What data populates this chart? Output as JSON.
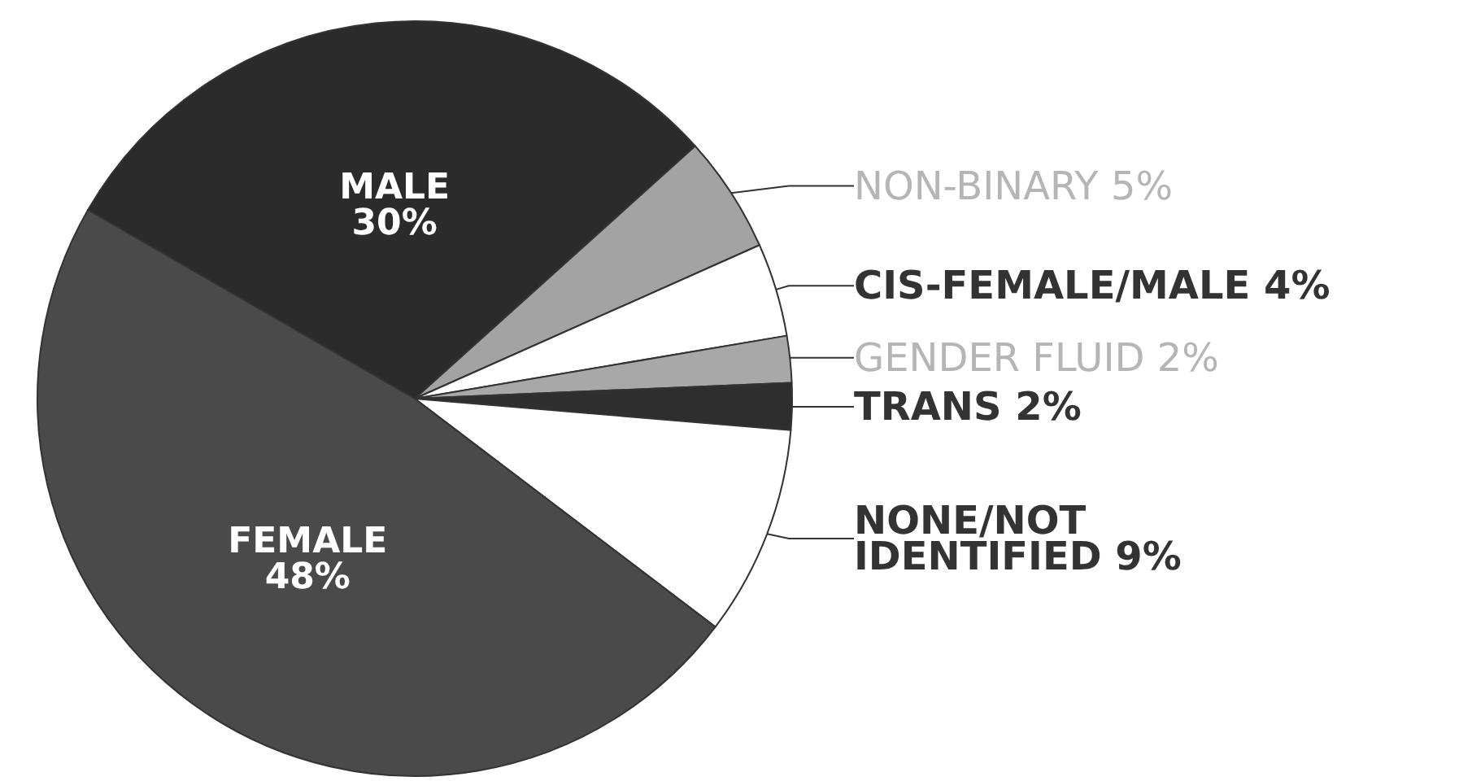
{
  "chart_data": {
    "type": "pie",
    "categories": [
      "MALE",
      "NON-BINARY",
      "CIS-FEMALE/MALE",
      "GENDER FLUID",
      "TRANS",
      "NONE/NOT IDENTIFIED",
      "FEMALE"
    ],
    "values": [
      30,
      5,
      4,
      2,
      2,
      9,
      48
    ],
    "colors": [
      "#2b2b2b",
      "#a3a3a3",
      "#ffffff",
      "#a8a8a8",
      "#2e2e2e",
      "#ffffff",
      "#4a4a4a"
    ],
    "value_labels": [
      "30%",
      "5%",
      "4%",
      "2%",
      "2%",
      "9%",
      "48%"
    ],
    "legend": false
  }
}
